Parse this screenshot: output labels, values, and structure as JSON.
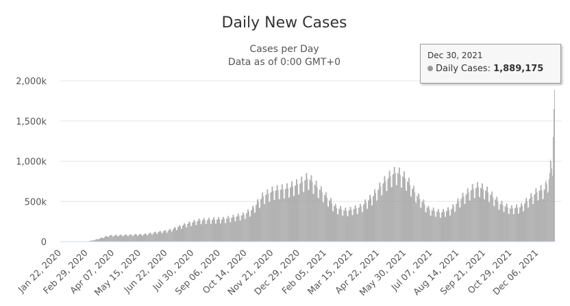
{
  "chart_data": {
    "type": "bar",
    "title": "Daily New Cases",
    "subtitle_line1": "Cases per Day",
    "subtitle_line2": "Data as of 0:00 GMT+0",
    "ylabel": "",
    "xlabel": "",
    "ylim": [
      0,
      2000000
    ],
    "y_ticks": [
      {
        "value": 0,
        "label": "0"
      },
      {
        "value": 500000,
        "label": "500k"
      },
      {
        "value": 1000000,
        "label": "1,000k"
      },
      {
        "value": 1500000,
        "label": "1,500k"
      },
      {
        "value": 2000000,
        "label": "2,000k"
      }
    ],
    "x_tick_labels": [
      "Jan 22, 2020",
      "Feb 29, 2020",
      "Apr 07, 2020",
      "May 15, 2020",
      "Jun 22, 2020",
      "Jul 30, 2020",
      "Sep 06, 2020",
      "Oct 14, 2020",
      "Nov 21, 2020",
      "Dec 29, 2020",
      "Feb 05, 2021",
      "Mar 15, 2021",
      "Apr 22, 2021",
      "May 30, 2021",
      "Jul 07, 2021",
      "Aug 14, 2021",
      "Sep 21, 2021",
      "Oct 29, 2021",
      "Dec 06, 2021"
    ],
    "first_date": "Jan 22, 2020",
    "last_date": "Dec 30, 2021",
    "days": 709,
    "series": [
      {
        "name": "Daily Cases",
        "color": "#999999"
      }
    ],
    "trend_anchors": [
      {
        "day": 0,
        "value": 1000
      },
      {
        "day": 14,
        "value": 3000
      },
      {
        "day": 38,
        "value": 2000
      },
      {
        "day": 48,
        "value": 20000
      },
      {
        "day": 60,
        "value": 50000
      },
      {
        "day": 70,
        "value": 75000
      },
      {
        "day": 120,
        "value": 90000
      },
      {
        "day": 155,
        "value": 140000
      },
      {
        "day": 185,
        "value": 230000
      },
      {
        "day": 200,
        "value": 265000
      },
      {
        "day": 235,
        "value": 280000
      },
      {
        "day": 262,
        "value": 330000
      },
      {
        "day": 275,
        "value": 400000
      },
      {
        "day": 290,
        "value": 560000
      },
      {
        "day": 305,
        "value": 630000
      },
      {
        "day": 325,
        "value": 660000
      },
      {
        "day": 343,
        "value": 720000
      },
      {
        "day": 355,
        "value": 790000
      },
      {
        "day": 372,
        "value": 640000
      },
      {
        "day": 395,
        "value": 420000
      },
      {
        "day": 410,
        "value": 380000
      },
      {
        "day": 430,
        "value": 430000
      },
      {
        "day": 448,
        "value": 560000
      },
      {
        "day": 462,
        "value": 720000
      },
      {
        "day": 475,
        "value": 830000
      },
      {
        "day": 482,
        "value": 860000
      },
      {
        "day": 495,
        "value": 780000
      },
      {
        "day": 512,
        "value": 560000
      },
      {
        "day": 528,
        "value": 400000
      },
      {
        "day": 545,
        "value": 360000
      },
      {
        "day": 560,
        "value": 400000
      },
      {
        "day": 575,
        "value": 540000
      },
      {
        "day": 590,
        "value": 650000
      },
      {
        "day": 600,
        "value": 680000
      },
      {
        "day": 612,
        "value": 620000
      },
      {
        "day": 630,
        "value": 470000
      },
      {
        "day": 645,
        "value": 410000
      },
      {
        "day": 660,
        "value": 430000
      },
      {
        "day": 672,
        "value": 530000
      },
      {
        "day": 685,
        "value": 630000
      },
      {
        "day": 694,
        "value": 650000
      },
      {
        "day": 700,
        "value": 780000
      },
      {
        "day": 703,
        "value": 1000000
      },
      {
        "day": 705,
        "value": 820000
      },
      {
        "day": 706,
        "value": 1300000
      },
      {
        "day": 707,
        "value": 1650000
      },
      {
        "day": 708,
        "value": 1889175
      }
    ]
  },
  "tooltip": {
    "date": "Dec 30, 2021",
    "series_label": "Daily Cases:",
    "value": "1,889,175"
  }
}
